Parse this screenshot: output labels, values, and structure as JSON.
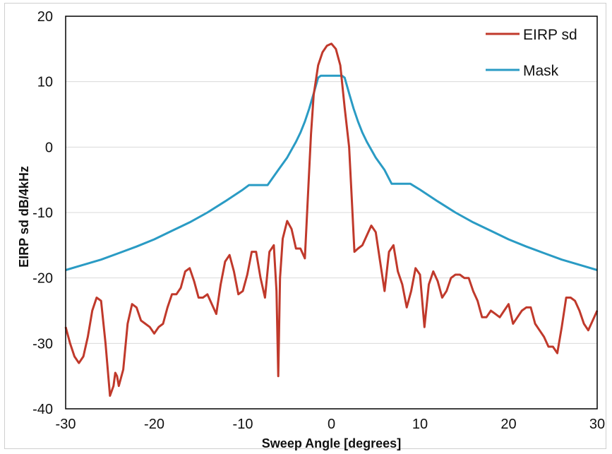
{
  "chart_data": {
    "type": "line",
    "title": "",
    "xlabel": "Sweep Angle [degrees]",
    "ylabel": "EIRP sd dB/4kHz",
    "xlim": [
      -30,
      30
    ],
    "ylim": [
      -40,
      20
    ],
    "xticks": [
      -30,
      -20,
      -10,
      0,
      10,
      20,
      30
    ],
    "yticks": [
      -40,
      -30,
      -20,
      -10,
      0,
      10,
      20
    ],
    "grid": "horizontal",
    "legend_position": "top-right",
    "series": [
      {
        "name": "EIRP sd",
        "color": "#c0392b",
        "x": [
          -30,
          -29.5,
          -29,
          -28.5,
          -28,
          -27.5,
          -27,
          -26.5,
          -26,
          -25.5,
          -25,
          -24.6,
          -24.4,
          -24.2,
          -24,
          -23.5,
          -23,
          -22.5,
          -22,
          -21.5,
          -21,
          -20.5,
          -20,
          -19.5,
          -19,
          -18.5,
          -18,
          -17.5,
          -17,
          -16.5,
          -16,
          -15.5,
          -15,
          -14.5,
          -14,
          -13.5,
          -13,
          -12.5,
          -12,
          -11.5,
          -11,
          -10.5,
          -10,
          -9.5,
          -9,
          -8.5,
          -8,
          -7.5,
          -7,
          -6.5,
          -6.2,
          -6.0,
          -5.8,
          -5.5,
          -5,
          -4.5,
          -4,
          -3.5,
          -3,
          -2.6,
          -2.3,
          -2,
          -1.5,
          -1,
          -0.5,
          0,
          0.5,
          1,
          1.5,
          2,
          2.3,
          2.6,
          3,
          3.5,
          4,
          4.5,
          5,
          5.5,
          6,
          6.5,
          7,
          7.5,
          8,
          8.5,
          9,
          9.5,
          10,
          10.5,
          11,
          11.5,
          12,
          12.5,
          13,
          13.5,
          14,
          14.5,
          15,
          15.5,
          16,
          16.5,
          17,
          17.5,
          18,
          18.5,
          19,
          19.5,
          20,
          20.5,
          21,
          21.5,
          22,
          22.5,
          23,
          23.5,
          24,
          24.5,
          25,
          25.5,
          26,
          26.5,
          27,
          27.5,
          28,
          28.5,
          29,
          29.5,
          30
        ],
        "y": [
          -27.5,
          -30,
          -32,
          -33,
          -32,
          -29,
          -25,
          -23,
          -23.5,
          -30,
          -38,
          -36.5,
          -34.5,
          -35,
          -36.5,
          -34,
          -27,
          -24,
          -24.5,
          -26.5,
          -27,
          -27.5,
          -28.5,
          -27.5,
          -27,
          -24.5,
          -22.5,
          -22.5,
          -21.5,
          -19,
          -18.5,
          -20.5,
          -23,
          -23,
          -22.5,
          -24,
          -25.5,
          -21,
          -17.5,
          -16.5,
          -19,
          -22.5,
          -22,
          -19.5,
          -16,
          -16,
          -20,
          -23,
          -16,
          -15,
          -22,
          -35,
          -20,
          -14,
          -11.3,
          -12.5,
          -15.5,
          -15.5,
          -17,
          -6,
          2,
          8,
          12.5,
          14.5,
          15.5,
          15.8,
          15,
          12.5,
          6,
          0,
          -8,
          -16,
          -15.5,
          -15,
          -13.5,
          -12,
          -13,
          -17.5,
          -22,
          -16,
          -15,
          -19,
          -21,
          -24.5,
          -22,
          -18.5,
          -19.5,
          -27.5,
          -21,
          -19,
          -20.5,
          -23,
          -22,
          -20,
          -19.5,
          -19.5,
          -20,
          -20,
          -22,
          -23.5,
          -26,
          -26,
          -25,
          -25.5,
          -26,
          -25,
          -24,
          -27,
          -26,
          -25,
          -24.5,
          -24.5,
          -27,
          -28,
          -29,
          -30.5,
          -30.5,
          -31.5,
          -27.5,
          -23,
          -23,
          -23.5,
          -25,
          -27,
          -28,
          -26.5,
          -25
        ]
      },
      {
        "name": "Mask",
        "color": "#2a9bc4",
        "x": [
          -30,
          -28,
          -26,
          -24,
          -22,
          -20,
          -18,
          -16,
          -14,
          -12,
          -10,
          -9.3,
          -7.2,
          -6,
          -5,
          -4,
          -3.5,
          -3,
          -2.5,
          -2,
          -1.5,
          -1.2,
          1.2,
          1.5,
          2,
          2.5,
          3,
          3.5,
          4,
          5,
          6,
          6.8,
          8.9,
          10,
          12,
          14,
          16,
          18,
          20,
          22,
          24,
          26,
          28,
          30
        ],
        "y": [
          -18.8,
          -18,
          -17.2,
          -16.2,
          -15.2,
          -14.1,
          -12.8,
          -11.5,
          -10,
          -8.3,
          -6.5,
          -5.8,
          -5.8,
          -3.5,
          -1.6,
          0.8,
          2.2,
          3.9,
          5.9,
          8.2,
          10.6,
          10.9,
          10.9,
          10.6,
          8.2,
          5.9,
          3.9,
          2.2,
          0.8,
          -1.6,
          -3.5,
          -5.6,
          -5.6,
          -6.5,
          -8.3,
          -10,
          -11.5,
          -12.8,
          -14.1,
          -15.2,
          -16.2,
          -17.2,
          -18,
          -18.8
        ]
      }
    ]
  }
}
